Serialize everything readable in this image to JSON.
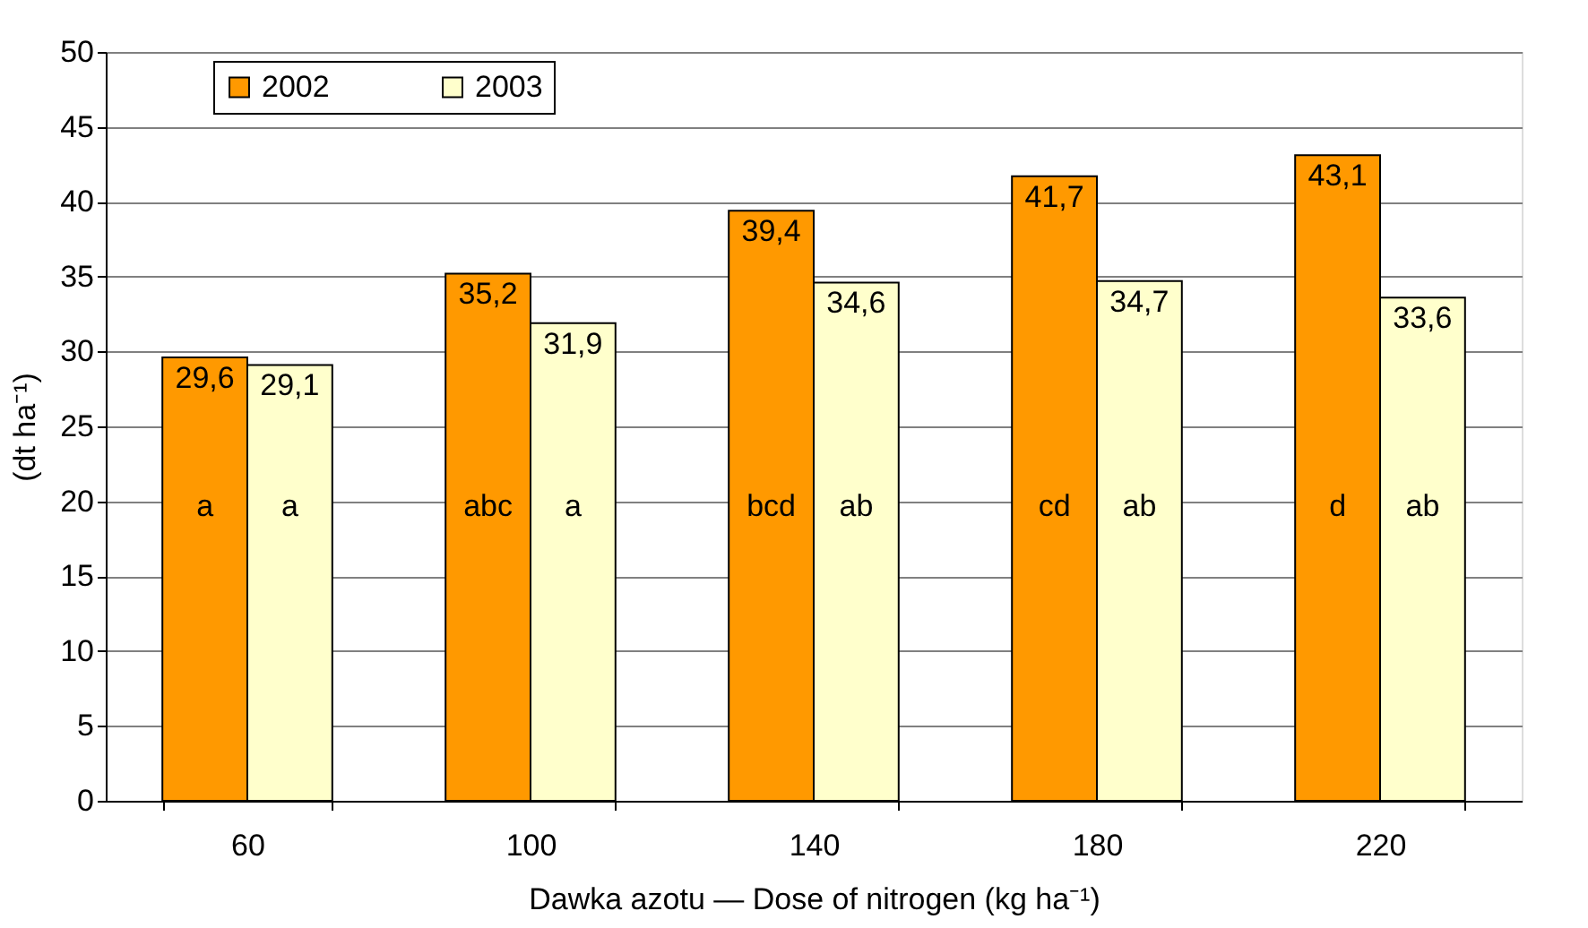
{
  "chart_data": {
    "type": "bar",
    "xlabel": "Dawka azotu — Dose of nitrogen (kg ha⁻¹)",
    "ylabel": "(dt ha⁻¹)",
    "categories": [
      "60",
      "100",
      "140",
      "180",
      "220"
    ],
    "series": [
      {
        "name": "2002",
        "color": "#ff9900",
        "values": [
          29.6,
          35.2,
          39.4,
          41.7,
          43.1
        ],
        "value_labels": [
          "29,6",
          "35,2",
          "39,4",
          "41,7",
          "43,1"
        ]
      },
      {
        "name": "2003",
        "color": "#ffffcc",
        "values": [
          29.1,
          31.9,
          34.6,
          34.7,
          33.6
        ],
        "value_labels": [
          "29,1",
          "31,9",
          "34,6",
          "34,7",
          "33,6"
        ]
      }
    ],
    "ylim": [
      0,
      50
    ],
    "yticks": [
      0,
      5,
      10,
      15,
      20,
      25,
      30,
      35,
      40,
      45,
      50
    ],
    "grid": "y",
    "legend": "top",
    "annotations": [
      {
        "text": "a",
        "x": "60",
        "y": 19.6
      },
      {
        "text": "a",
        "x": "60",
        "y": 19.6
      },
      {
        "text": "abc",
        "x": "100",
        "y": 19.6
      },
      {
        "text": "a",
        "x": "100",
        "y": 19.6
      },
      {
        "text": "bcd",
        "x": "140",
        "y": 19.6
      },
      {
        "text": "ab",
        "x": "140",
        "y": 19.6
      },
      {
        "text": "cd",
        "x": "180",
        "y": 19.6
      },
      {
        "text": "ab",
        "x": "180",
        "y": 19.6
      },
      {
        "text": "d",
        "x": "220",
        "y": 19.6
      },
      {
        "text": "ab",
        "x": "220",
        "y": 19.6
      }
    ]
  }
}
